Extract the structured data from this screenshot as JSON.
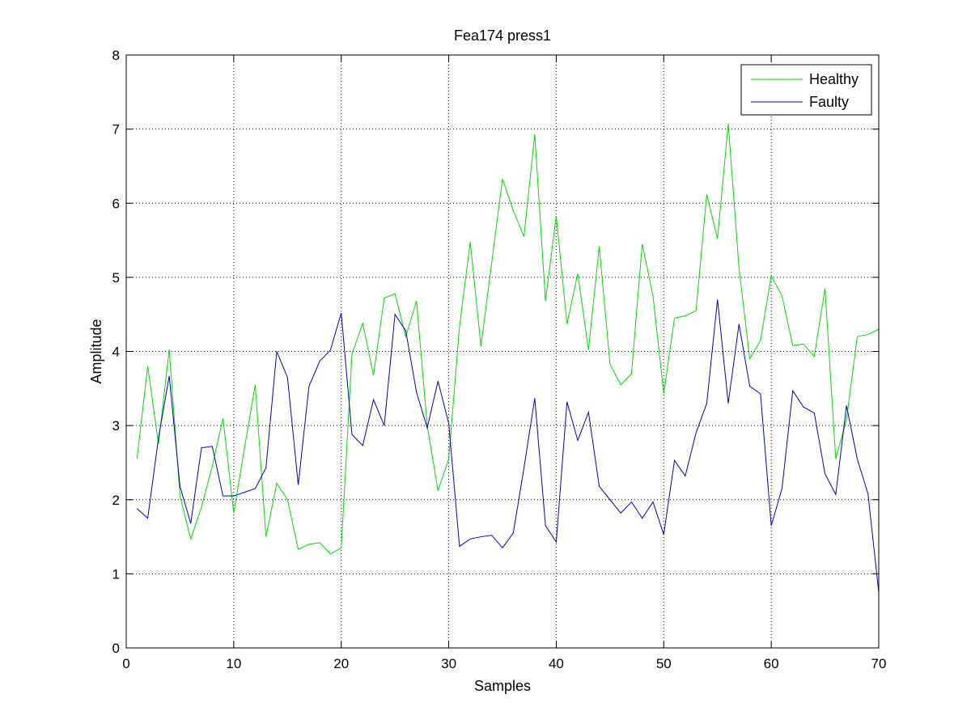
{
  "chart_data": {
    "type": "line",
    "title": "Fea174  press1",
    "xlabel": "Samples",
    "ylabel": "Amplitude",
    "xlim": [
      0,
      70
    ],
    "ylim": [
      0,
      8
    ],
    "xticks": [
      "0",
      "10",
      "20",
      "30",
      "40",
      "50",
      "60",
      "70"
    ],
    "yticks": [
      "0",
      "1",
      "2",
      "3",
      "4",
      "5",
      "6",
      "7",
      "8"
    ],
    "grid": true,
    "legend_position": "top-right",
    "x": [
      1,
      2,
      3,
      4,
      5,
      6,
      7,
      8,
      9,
      10,
      11,
      12,
      13,
      14,
      15,
      16,
      17,
      18,
      19,
      20,
      21,
      22,
      23,
      24,
      25,
      26,
      27,
      28,
      29,
      30,
      31,
      32,
      33,
      34,
      35,
      36,
      37,
      38,
      39,
      40,
      41,
      42,
      43,
      44,
      45,
      46,
      47,
      48,
      49,
      50,
      51,
      52,
      53,
      54,
      55,
      56,
      57,
      58,
      59,
      60,
      61,
      62,
      63,
      64,
      65,
      66,
      67,
      68,
      69,
      70
    ],
    "series": [
      {
        "name": "Healthy",
        "color": "#00dd00",
        "values": [
          2.55,
          3.8,
          2.75,
          4.03,
          2.05,
          1.47,
          1.9,
          2.45,
          3.1,
          1.82,
          2.7,
          3.55,
          1.5,
          2.22,
          2.0,
          1.33,
          1.4,
          1.42,
          1.27,
          1.35,
          3.97,
          4.38,
          3.68,
          4.72,
          4.78,
          4.2,
          4.68,
          3.0,
          2.12,
          2.55,
          4.33,
          5.48,
          4.07,
          5.2,
          6.33,
          5.9,
          5.55,
          6.93,
          4.68,
          5.83,
          4.37,
          5.05,
          4.02,
          5.42,
          3.83,
          3.55,
          3.7,
          5.45,
          4.75,
          3.43,
          4.45,
          4.48,
          4.55,
          6.12,
          5.52,
          7.07,
          5.13,
          3.9,
          4.15,
          5.02,
          4.75,
          4.08,
          4.1,
          3.93,
          4.85,
          2.55,
          3.08,
          4.2,
          4.23,
          4.3
        ]
      },
      {
        "name": "Faulty",
        "color": "#0000cc",
        "values": [
          1.88,
          1.75,
          2.83,
          3.67,
          2.18,
          1.68,
          2.7,
          2.72,
          2.05,
          2.05,
          2.1,
          2.15,
          2.43,
          4.0,
          3.65,
          2.2,
          3.53,
          3.87,
          4.02,
          4.52,
          2.88,
          2.73,
          3.35,
          3.0,
          4.5,
          4.28,
          3.45,
          2.97,
          3.6,
          3.03,
          1.37,
          1.47,
          1.5,
          1.52,
          1.35,
          1.55,
          2.43,
          3.37,
          1.65,
          1.43,
          3.32,
          2.8,
          3.18,
          2.18,
          2.0,
          1.82,
          1.97,
          1.75,
          1.97,
          1.53,
          2.53,
          2.32,
          2.9,
          3.3,
          4.7,
          3.3,
          4.37,
          3.53,
          3.43,
          1.65,
          2.15,
          3.47,
          3.25,
          3.17,
          2.35,
          2.07,
          3.27,
          2.55,
          2.08,
          0.75
        ]
      }
    ]
  }
}
